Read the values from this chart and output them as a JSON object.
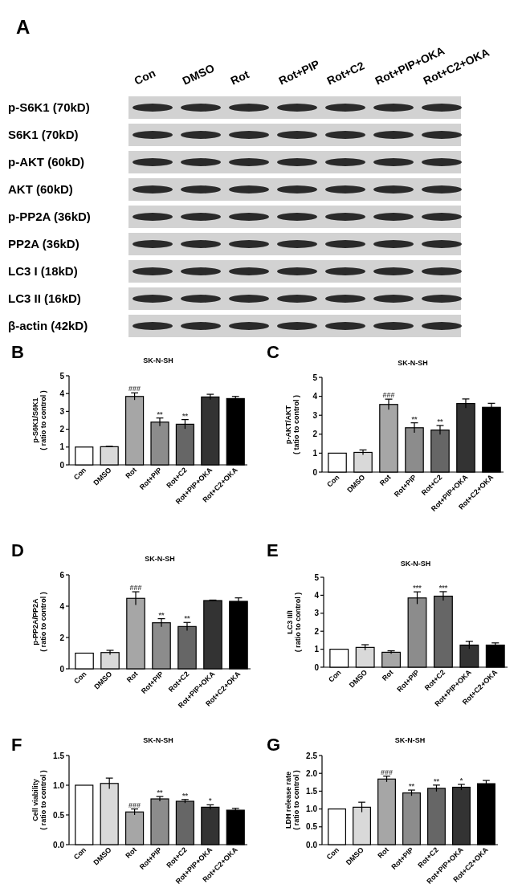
{
  "chart_data": [
    {
      "type": "other",
      "title": "A",
      "categories": [
        "Con",
        "DMSO",
        "Rot",
        "Rot+PIP",
        "Rot+C2",
        "Rot+PIP+OKA",
        "Rot+C2+OKA"
      ],
      "y_categories": [
        "p-S6K1 (70kD)",
        "S6K1 (70kD)",
        "p-AKT (60kD)",
        "AKT (60kD)",
        "p-PP2A (36kD)",
        "PP2A (36kD)",
        "LC3 I (18kD)",
        "LC3 II (16kD)",
        "β-actin (42kD)"
      ]
    },
    {
      "type": "bar",
      "title": "SK-N-SH",
      "ylabel": "p-S6K1/S6K1\n( ratio to control )",
      "categories": [
        "Con",
        "DMSO",
        "Rot",
        "Rot+PIP",
        "Rot+C2",
        "Rot+PIP+OKA",
        "Rot+C2+OKA"
      ],
      "values": [
        1.0,
        1.02,
        3.84,
        2.4,
        2.28,
        3.81,
        3.72
      ],
      "errors": [
        null,
        0.02,
        0.2,
        0.23,
        0.26,
        0.15,
        0.12
      ],
      "colors": [
        "#ffffff",
        "#d9d9d9",
        "#a6a6a6",
        "#8c8c8c",
        "#666666",
        "#333333",
        "#000000"
      ],
      "ylim": [
        0,
        5
      ],
      "yticks": [
        0,
        1,
        2,
        3,
        4,
        5
      ],
      "annotations": [
        "B",
        {
          "text": "###",
          "x": "Rot",
          "y": 4.05
        },
        {
          "text": "**",
          "x": "Rot+PIP",
          "y": 2.63
        },
        {
          "text": "**",
          "x": "Rot+C2",
          "y": 2.54
        }
      ]
    },
    {
      "type": "bar",
      "title": "SK-N-SH",
      "ylabel": "p-AKT/AKT\n( tatio to control )",
      "categories": [
        "Con",
        "DMSO",
        "Rot",
        "Rot+PIP",
        "Rot+C2",
        "Rot+PIP+OKA",
        "Rot+C2+OKA"
      ],
      "values": [
        1.0,
        1.04,
        3.57,
        2.34,
        2.22,
        3.62,
        3.42
      ],
      "errors": [
        null,
        0.13,
        0.28,
        0.26,
        0.24,
        0.24,
        0.21
      ],
      "colors": [
        "#ffffff",
        "#d9d9d9",
        "#a6a6a6",
        "#8c8c8c",
        "#666666",
        "#333333",
        "#000000"
      ],
      "ylim": [
        0,
        5
      ],
      "yticks": [
        0,
        1,
        2,
        3,
        4,
        5
      ],
      "annotations": [
        "C",
        {
          "text": "###",
          "x": "Rot",
          "y": 3.86
        },
        {
          "text": "**",
          "x": "Rot+PIP",
          "y": 2.6
        },
        {
          "text": "**",
          "x": "Rot+C2",
          "y": 2.46
        }
      ]
    },
    {
      "type": "bar",
      "title": "SK-N-SH",
      "ylabel": "p-PP2A/PP2A\n( ratio to control )",
      "categories": [
        "Con",
        "DMSO",
        "Rot",
        "Rot+PIP",
        "Rot+C2",
        "Rot+PIP+OKA",
        "Rot+C2+OKA"
      ],
      "values": [
        1.0,
        1.04,
        4.5,
        2.94,
        2.7,
        4.36,
        4.31
      ],
      "errors": [
        null,
        0.14,
        0.42,
        0.26,
        0.26,
        0.03,
        0.22
      ],
      "colors": [
        "#ffffff",
        "#d9d9d9",
        "#a6a6a6",
        "#8c8c8c",
        "#666666",
        "#333333",
        "#000000"
      ],
      "ylim": [
        0,
        6
      ],
      "yticks": [
        0,
        2,
        4,
        6
      ],
      "annotations": [
        "D",
        {
          "text": "###",
          "x": "Rot",
          "y": 4.92
        },
        {
          "text": "**",
          "x": "Rot+PIP",
          "y": 3.2
        },
        {
          "text": "**",
          "x": "Rot+C2",
          "y": 2.96
        }
      ]
    },
    {
      "type": "bar",
      "title": "SK-N-SH",
      "ylabel": "LC3 II/I\n( ratio to control )",
      "categories": [
        "Con",
        "DMSO",
        "Rot",
        "Rot+PIP",
        "Rot+C2",
        "Rot+PIP+OKA",
        "Rot+C2+OKA"
      ],
      "values": [
        1.0,
        1.1,
        0.83,
        3.85,
        3.95,
        1.23,
        1.23
      ],
      "errors": [
        null,
        0.15,
        0.08,
        0.34,
        0.25,
        0.21,
        0.12
      ],
      "colors": [
        "#ffffff",
        "#d9d9d9",
        "#a6a6a6",
        "#8c8c8c",
        "#666666",
        "#333333",
        "#000000"
      ],
      "ylim": [
        0,
        5
      ],
      "yticks": [
        0,
        1,
        2,
        3,
        4,
        5
      ],
      "annotations": [
        "E",
        {
          "text": "***",
          "x": "Rot+PIP",
          "y": 4.19
        },
        {
          "text": "***",
          "x": "Rot+C2",
          "y": 4.2
        }
      ]
    },
    {
      "type": "bar",
      "title": "SK-N-SH",
      "ylabel": "Cell viability\n( ratio to control )",
      "categories": [
        "Con",
        "DMSO",
        "Rot",
        "Rot+PIP",
        "Rot+C2",
        "Rot+PIP+OKA",
        "Rot+C2+OKA"
      ],
      "values": [
        1.0,
        1.03,
        0.55,
        0.77,
        0.73,
        0.63,
        0.58
      ],
      "errors": [
        null,
        0.09,
        0.05,
        0.04,
        0.03,
        0.04,
        0.03
      ],
      "colors": [
        "#ffffff",
        "#d9d9d9",
        "#a6a6a6",
        "#8c8c8c",
        "#666666",
        "#333333",
        "#000000"
      ],
      "ylim": [
        0,
        1.5
      ],
      "yticks": [
        {
          "value": 0,
          "label": "0.0"
        },
        {
          "value": 0.5,
          "label": "0.5"
        },
        {
          "value": 1,
          "label": "1.0"
        },
        {
          "value": 1.5,
          "label": "1.5"
        }
      ],
      "annotations": [
        "F",
        {
          "text": "###",
          "x": "Rot",
          "y": 0.6
        },
        {
          "text": "**",
          "x": "Rot+PIP",
          "y": 0.81
        },
        {
          "text": "**",
          "x": "Rot+C2",
          "y": 0.76
        },
        {
          "text": "*",
          "x": "Rot+PIP+OKA",
          "y": 0.67
        }
      ]
    },
    {
      "type": "bar",
      "title": "SK-N-SH",
      "ylabel": "LDH release rate\n( ratio to control )",
      "categories": [
        "Con",
        "DMSO",
        "Rot",
        "Rot+PIP",
        "Rot+C2",
        "Rot+PIP+OKA",
        "Rot+C2+OKA"
      ],
      "values": [
        1.0,
        1.05,
        1.84,
        1.45,
        1.58,
        1.61,
        1.71
      ],
      "errors": [
        null,
        0.14,
        0.08,
        0.08,
        0.09,
        0.08,
        0.09
      ],
      "colors": [
        "#ffffff",
        "#d9d9d9",
        "#a6a6a6",
        "#8c8c8c",
        "#666666",
        "#333333",
        "#000000"
      ],
      "ylim": [
        0,
        2.5
      ],
      "yticks": [
        {
          "value": 0,
          "label": "0.0"
        },
        {
          "value": 0.5,
          "label": "0.5"
        },
        {
          "value": 1,
          "label": "1.0"
        },
        {
          "value": 1.5,
          "label": "1.5"
        },
        {
          "value": 2,
          "label": "2.0"
        },
        {
          "value": 2.5,
          "label": "2.5"
        }
      ],
      "annotations": [
        "G",
        {
          "text": "###",
          "x": "Rot",
          "y": 1.92
        },
        {
          "text": "**",
          "x": "Rot+PIP",
          "y": 1.53
        },
        {
          "text": "**",
          "x": "Rot+C2",
          "y": 1.67
        },
        {
          "text": "*",
          "x": "Rot+PIP+OKA",
          "y": 1.69
        }
      ]
    }
  ]
}
